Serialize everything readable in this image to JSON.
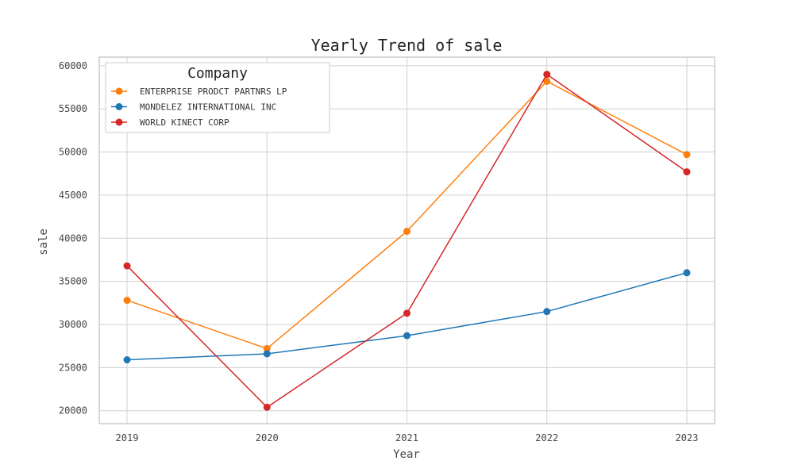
{
  "chart_data": {
    "type": "line",
    "title": "Yearly Trend of sale",
    "xlabel": "Year",
    "ylabel": "sale",
    "x": [
      "2019",
      "2020",
      "2021",
      "2022",
      "2023"
    ],
    "ylim": [
      18500,
      61000
    ],
    "yticks": [
      20000,
      25000,
      30000,
      35000,
      40000,
      45000,
      50000,
      55000,
      60000
    ],
    "grid": true,
    "legend": {
      "title": "Company",
      "placement": "top-left"
    },
    "series": [
      {
        "name": "ENTERPRISE PRODCT PARTNRS LP",
        "color": "#ff7f0e",
        "values": [
          32800,
          27200,
          40800,
          58200,
          49700
        ]
      },
      {
        "name": "MONDELEZ INTERNATIONAL INC",
        "color": "#1f77b4",
        "values": [
          25900,
          26600,
          28700,
          31500,
          36000
        ]
      },
      {
        "name": "WORLD KINECT CORP",
        "color": "#d62728",
        "values": [
          36800,
          20400,
          31300,
          59000,
          47700
        ]
      }
    ]
  }
}
